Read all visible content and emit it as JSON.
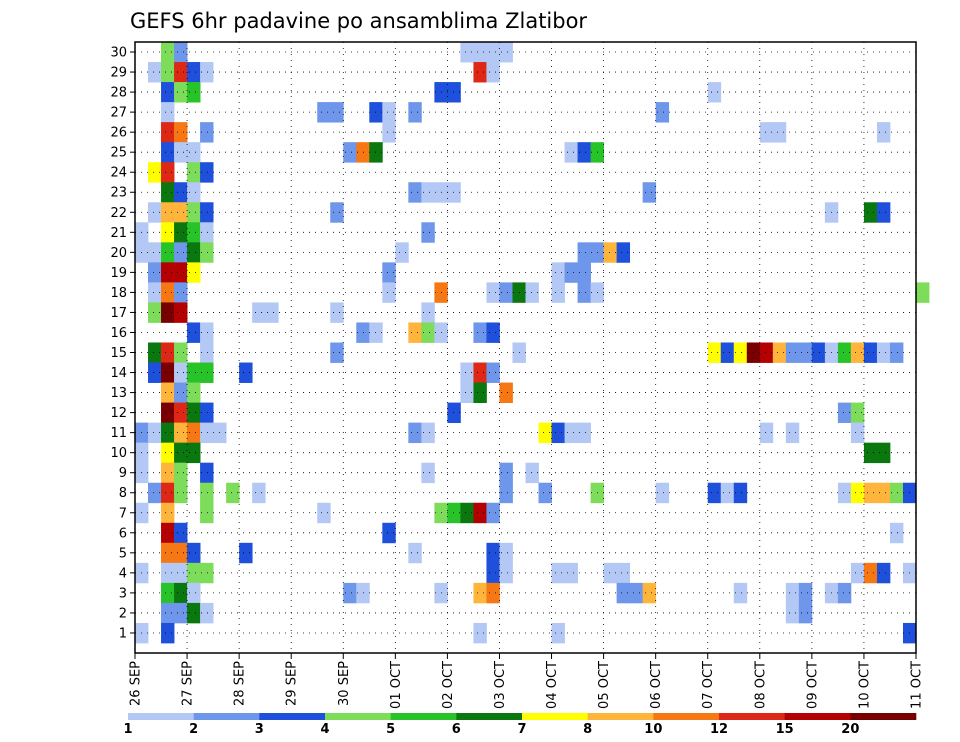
{
  "chart_data": {
    "type": "heatmap",
    "title": "GEFS 6hr padavine po ansamblima Zlatibor",
    "xlabel": "",
    "ylabel": "",
    "x_tick_labels": [
      "26 SEP",
      "27 SEP",
      "28 SEP",
      "29 SEP",
      "30 SEP",
      "01 OCT",
      "02 OCT",
      "03 OCT",
      "04 OCT",
      "05 OCT",
      "06 OCT",
      "07 OCT",
      "08 OCT",
      "09 OCT",
      "10 OCT",
      "11 OCT"
    ],
    "x_steps_per_day": 4,
    "x_range_steps": [
      0,
      60
    ],
    "y_tick_labels": [
      "1",
      "2",
      "3",
      "4",
      "5",
      "6",
      "7",
      "8",
      "9",
      "10",
      "11",
      "12",
      "13",
      "14",
      "15",
      "16",
      "17",
      "18",
      "19",
      "20",
      "21",
      "22",
      "23",
      "24",
      "25",
      "26",
      "27",
      "28",
      "29",
      "30"
    ],
    "grid": true,
    "colorbar": {
      "labels": [
        "1",
        "2",
        "3",
        "4",
        "5",
        "6",
        "7",
        "8",
        "10",
        "12",
        "15",
        "20"
      ],
      "colors": {
        "1": "#b4c8f5",
        "2": "#6e96eb",
        "3": "#1e50dc",
        "4": "#7ddc5a",
        "5": "#28c328",
        "6": "#0a780f",
        "7": "#ffff00",
        "8": "#ffb43c",
        "10": "#f57814",
        "12": "#dc2814",
        "15": "#b40000",
        "20": "#780000"
      }
    },
    "cells": [
      {
        "m": 30,
        "t": 2,
        "c": "4"
      },
      {
        "m": 30,
        "t": 3,
        "c": "2"
      },
      {
        "m": 30,
        "t": 25,
        "c": "1"
      },
      {
        "m": 30,
        "t": 26,
        "c": "1"
      },
      {
        "m": 30,
        "t": 27,
        "c": "1"
      },
      {
        "m": 30,
        "t": 28,
        "c": "1"
      },
      {
        "m": 29,
        "t": 1,
        "c": "1"
      },
      {
        "m": 29,
        "t": 2,
        "c": "4"
      },
      {
        "m": 29,
        "t": 3,
        "c": "12"
      },
      {
        "m": 29,
        "t": 4,
        "c": "3"
      },
      {
        "m": 29,
        "t": 5,
        "c": "1"
      },
      {
        "m": 29,
        "t": 26,
        "c": "12"
      },
      {
        "m": 29,
        "t": 27,
        "c": "1"
      },
      {
        "m": 28,
        "t": 2,
        "c": "3"
      },
      {
        "m": 28,
        "t": 3,
        "c": "4"
      },
      {
        "m": 28,
        "t": 4,
        "c": "5"
      },
      {
        "m": 28,
        "t": 23,
        "c": "3"
      },
      {
        "m": 28,
        "t": 24,
        "c": "3"
      },
      {
        "m": 28,
        "t": 44,
        "c": "1"
      },
      {
        "m": 27,
        "t": 2,
        "c": "1"
      },
      {
        "m": 27,
        "t": 14,
        "c": "2"
      },
      {
        "m": 27,
        "t": 15,
        "c": "2"
      },
      {
        "m": 27,
        "t": 18,
        "c": "3"
      },
      {
        "m": 27,
        "t": 19,
        "c": "1"
      },
      {
        "m": 27,
        "t": 21,
        "c": "2"
      },
      {
        "m": 27,
        "t": 40,
        "c": "2"
      },
      {
        "m": 26,
        "t": 2,
        "c": "12"
      },
      {
        "m": 26,
        "t": 3,
        "c": "10"
      },
      {
        "m": 26,
        "t": 5,
        "c": "2"
      },
      {
        "m": 26,
        "t": 19,
        "c": "1"
      },
      {
        "m": 26,
        "t": 48,
        "c": "1"
      },
      {
        "m": 26,
        "t": 49,
        "c": "1"
      },
      {
        "m": 26,
        "t": 57,
        "c": "1"
      },
      {
        "m": 25,
        "t": 2,
        "c": "3"
      },
      {
        "m": 25,
        "t": 3,
        "c": "1"
      },
      {
        "m": 25,
        "t": 4,
        "c": "1"
      },
      {
        "m": 25,
        "t": 16,
        "c": "2"
      },
      {
        "m": 25,
        "t": 17,
        "c": "10"
      },
      {
        "m": 25,
        "t": 18,
        "c": "6"
      },
      {
        "m": 25,
        "t": 33,
        "c": "1"
      },
      {
        "m": 25,
        "t": 34,
        "c": "3"
      },
      {
        "m": 25,
        "t": 35,
        "c": "5"
      },
      {
        "m": 24,
        "t": 1,
        "c": "7"
      },
      {
        "m": 24,
        "t": 2,
        "c": "12"
      },
      {
        "m": 24,
        "t": 4,
        "c": "4"
      },
      {
        "m": 24,
        "t": 5,
        "c": "3"
      },
      {
        "m": 23,
        "t": 2,
        "c": "6"
      },
      {
        "m": 23,
        "t": 3,
        "c": "3"
      },
      {
        "m": 23,
        "t": 4,
        "c": "1"
      },
      {
        "m": 23,
        "t": 21,
        "c": "2"
      },
      {
        "m": 23,
        "t": 22,
        "c": "1"
      },
      {
        "m": 23,
        "t": 23,
        "c": "1"
      },
      {
        "m": 23,
        "t": 24,
        "c": "1"
      },
      {
        "m": 23,
        "t": 39,
        "c": "2"
      },
      {
        "m": 22,
        "t": 1,
        "c": "1"
      },
      {
        "m": 22,
        "t": 2,
        "c": "8"
      },
      {
        "m": 22,
        "t": 3,
        "c": "8"
      },
      {
        "m": 22,
        "t": 4,
        "c": "4"
      },
      {
        "m": 22,
        "t": 5,
        "c": "3"
      },
      {
        "m": 22,
        "t": 15,
        "c": "2"
      },
      {
        "m": 22,
        "t": 53,
        "c": "1"
      },
      {
        "m": 22,
        "t": 56,
        "c": "6"
      },
      {
        "m": 22,
        "t": 57,
        "c": "3"
      },
      {
        "m": 21,
        "t": 0,
        "c": "1"
      },
      {
        "m": 21,
        "t": 2,
        "c": "7"
      },
      {
        "m": 21,
        "t": 3,
        "c": "6"
      },
      {
        "m": 21,
        "t": 4,
        "c": "5"
      },
      {
        "m": 21,
        "t": 5,
        "c": "1"
      },
      {
        "m": 21,
        "t": 22,
        "c": "2"
      },
      {
        "m": 20,
        "t": 0,
        "c": "1"
      },
      {
        "m": 20,
        "t": 1,
        "c": "1"
      },
      {
        "m": 20,
        "t": 2,
        "c": "5"
      },
      {
        "m": 20,
        "t": 3,
        "c": "2"
      },
      {
        "m": 20,
        "t": 4,
        "c": "6"
      },
      {
        "m": 20,
        "t": 5,
        "c": "4"
      },
      {
        "m": 20,
        "t": 20,
        "c": "1"
      },
      {
        "m": 20,
        "t": 34,
        "c": "2"
      },
      {
        "m": 20,
        "t": 35,
        "c": "2"
      },
      {
        "m": 20,
        "t": 36,
        "c": "8"
      },
      {
        "m": 20,
        "t": 37,
        "c": "3"
      },
      {
        "m": 19,
        "t": 1,
        "c": "2"
      },
      {
        "m": 19,
        "t": 2,
        "c": "15"
      },
      {
        "m": 19,
        "t": 3,
        "c": "15"
      },
      {
        "m": 19,
        "t": 4,
        "c": "7"
      },
      {
        "m": 19,
        "t": 19,
        "c": "2"
      },
      {
        "m": 19,
        "t": 32,
        "c": "1"
      },
      {
        "m": 19,
        "t": 33,
        "c": "2"
      },
      {
        "m": 19,
        "t": 34,
        "c": "2"
      },
      {
        "m": 18,
        "t": 1,
        "c": "1"
      },
      {
        "m": 18,
        "t": 2,
        "c": "10"
      },
      {
        "m": 18,
        "t": 3,
        "c": "2"
      },
      {
        "m": 18,
        "t": 19,
        "c": "1"
      },
      {
        "m": 18,
        "t": 23,
        "c": "10"
      },
      {
        "m": 18,
        "t": 27,
        "c": "1"
      },
      {
        "m": 18,
        "t": 28,
        "c": "2"
      },
      {
        "m": 18,
        "t": 29,
        "c": "6"
      },
      {
        "m": 18,
        "t": 30,
        "c": "1"
      },
      {
        "m": 18,
        "t": 32,
        "c": "1"
      },
      {
        "m": 18,
        "t": 34,
        "c": "2"
      },
      {
        "m": 18,
        "t": 35,
        "c": "1"
      },
      {
        "m": 18,
        "t": 60,
        "c": "4"
      },
      {
        "m": 17,
        "t": 1,
        "c": "4"
      },
      {
        "m": 17,
        "t": 2,
        "c": "20"
      },
      {
        "m": 17,
        "t": 3,
        "c": "15"
      },
      {
        "m": 17,
        "t": 9,
        "c": "1"
      },
      {
        "m": 17,
        "t": 10,
        "c": "1"
      },
      {
        "m": 17,
        "t": 15,
        "c": "1"
      },
      {
        "m": 17,
        "t": 22,
        "c": "1"
      },
      {
        "m": 16,
        "t": 4,
        "c": "3"
      },
      {
        "m": 16,
        "t": 5,
        "c": "1"
      },
      {
        "m": 16,
        "t": 17,
        "c": "2"
      },
      {
        "m": 16,
        "t": 18,
        "c": "1"
      },
      {
        "m": 16,
        "t": 21,
        "c": "8"
      },
      {
        "m": 16,
        "t": 22,
        "c": "4"
      },
      {
        "m": 16,
        "t": 23,
        "c": "1"
      },
      {
        "m": 16,
        "t": 26,
        "c": "2"
      },
      {
        "m": 16,
        "t": 27,
        "c": "3"
      },
      {
        "m": 15,
        "t": 1,
        "c": "6"
      },
      {
        "m": 15,
        "t": 2,
        "c": "12"
      },
      {
        "m": 15,
        "t": 3,
        "c": "4"
      },
      {
        "m": 15,
        "t": 5,
        "c": "1"
      },
      {
        "m": 15,
        "t": 15,
        "c": "2"
      },
      {
        "m": 15,
        "t": 29,
        "c": "1"
      },
      {
        "m": 15,
        "t": 44,
        "c": "7"
      },
      {
        "m": 15,
        "t": 45,
        "c": "3"
      },
      {
        "m": 15,
        "t": 46,
        "c": "7"
      },
      {
        "m": 15,
        "t": 47,
        "c": "20"
      },
      {
        "m": 15,
        "t": 48,
        "c": "15"
      },
      {
        "m": 15,
        "t": 49,
        "c": "8"
      },
      {
        "m": 15,
        "t": 50,
        "c": "2"
      },
      {
        "m": 15,
        "t": 51,
        "c": "2"
      },
      {
        "m": 15,
        "t": 52,
        "c": "3"
      },
      {
        "m": 15,
        "t": 53,
        "c": "1"
      },
      {
        "m": 15,
        "t": 54,
        "c": "5"
      },
      {
        "m": 15,
        "t": 55,
        "c": "8"
      },
      {
        "m": 15,
        "t": 56,
        "c": "3"
      },
      {
        "m": 15,
        "t": 57,
        "c": "1"
      },
      {
        "m": 15,
        "t": 58,
        "c": "2"
      },
      {
        "m": 14,
        "t": 1,
        "c": "3"
      },
      {
        "m": 14,
        "t": 2,
        "c": "20"
      },
      {
        "m": 14,
        "t": 3,
        "c": "1"
      },
      {
        "m": 14,
        "t": 4,
        "c": "5"
      },
      {
        "m": 14,
        "t": 5,
        "c": "5"
      },
      {
        "m": 14,
        "t": 8,
        "c": "3"
      },
      {
        "m": 14,
        "t": 25,
        "c": "1"
      },
      {
        "m": 14,
        "t": 26,
        "c": "12"
      },
      {
        "m": 14,
        "t": 27,
        "c": "2"
      },
      {
        "m": 13,
        "t": 2,
        "c": "8"
      },
      {
        "m": 13,
        "t": 3,
        "c": "2"
      },
      {
        "m": 13,
        "t": 4,
        "c": "4"
      },
      {
        "m": 13,
        "t": 25,
        "c": "1"
      },
      {
        "m": 13,
        "t": 26,
        "c": "6"
      },
      {
        "m": 13,
        "t": 28,
        "c": "10"
      },
      {
        "m": 12,
        "t": 2,
        "c": "20"
      },
      {
        "m": 12,
        "t": 3,
        "c": "12"
      },
      {
        "m": 12,
        "t": 4,
        "c": "6"
      },
      {
        "m": 12,
        "t": 5,
        "c": "3"
      },
      {
        "m": 12,
        "t": 24,
        "c": "3"
      },
      {
        "m": 12,
        "t": 54,
        "c": "2"
      },
      {
        "m": 12,
        "t": 55,
        "c": "4"
      },
      {
        "m": 11,
        "t": 0,
        "c": "2"
      },
      {
        "m": 11,
        "t": 1,
        "c": "1"
      },
      {
        "m": 11,
        "t": 2,
        "c": "6"
      },
      {
        "m": 11,
        "t": 3,
        "c": "8"
      },
      {
        "m": 11,
        "t": 4,
        "c": "10"
      },
      {
        "m": 11,
        "t": 5,
        "c": "1"
      },
      {
        "m": 11,
        "t": 6,
        "c": "1"
      },
      {
        "m": 11,
        "t": 21,
        "c": "2"
      },
      {
        "m": 11,
        "t": 22,
        "c": "1"
      },
      {
        "m": 11,
        "t": 31,
        "c": "7"
      },
      {
        "m": 11,
        "t": 32,
        "c": "3"
      },
      {
        "m": 11,
        "t": 33,
        "c": "1"
      },
      {
        "m": 11,
        "t": 34,
        "c": "1"
      },
      {
        "m": 11,
        "t": 48,
        "c": "1"
      },
      {
        "m": 11,
        "t": 50,
        "c": "1"
      },
      {
        "m": 11,
        "t": 55,
        "c": "1"
      },
      {
        "m": 10,
        "t": 0,
        "c": "1"
      },
      {
        "m": 10,
        "t": 2,
        "c": "7"
      },
      {
        "m": 10,
        "t": 3,
        "c": "6"
      },
      {
        "m": 10,
        "t": 4,
        "c": "6"
      },
      {
        "m": 10,
        "t": 56,
        "c": "6"
      },
      {
        "m": 10,
        "t": 57,
        "c": "6"
      },
      {
        "m": 9,
        "t": 0,
        "c": "1"
      },
      {
        "m": 9,
        "t": 2,
        "c": "8"
      },
      {
        "m": 9,
        "t": 3,
        "c": "4"
      },
      {
        "m": 9,
        "t": 5,
        "c": "3"
      },
      {
        "m": 9,
        "t": 22,
        "c": "1"
      },
      {
        "m": 9,
        "t": 28,
        "c": "2"
      },
      {
        "m": 9,
        "t": 30,
        "c": "1"
      },
      {
        "m": 8,
        "t": 1,
        "c": "2"
      },
      {
        "m": 8,
        "t": 2,
        "c": "12"
      },
      {
        "m": 8,
        "t": 3,
        "c": "4"
      },
      {
        "m": 8,
        "t": 5,
        "c": "4"
      },
      {
        "m": 8,
        "t": 7,
        "c": "4"
      },
      {
        "m": 8,
        "t": 9,
        "c": "1"
      },
      {
        "m": 8,
        "t": 28,
        "c": "2"
      },
      {
        "m": 8,
        "t": 31,
        "c": "2"
      },
      {
        "m": 8,
        "t": 35,
        "c": "4"
      },
      {
        "m": 8,
        "t": 40,
        "c": "1"
      },
      {
        "m": 8,
        "t": 44,
        "c": "3"
      },
      {
        "m": 8,
        "t": 45,
        "c": "1"
      },
      {
        "m": 8,
        "t": 46,
        "c": "3"
      },
      {
        "m": 8,
        "t": 54,
        "c": "1"
      },
      {
        "m": 8,
        "t": 55,
        "c": "7"
      },
      {
        "m": 8,
        "t": 56,
        "c": "8"
      },
      {
        "m": 8,
        "t": 57,
        "c": "8"
      },
      {
        "m": 8,
        "t": 58,
        "c": "4"
      },
      {
        "m": 8,
        "t": 59,
        "c": "3"
      },
      {
        "m": 7,
        "t": 0,
        "c": "1"
      },
      {
        "m": 7,
        "t": 2,
        "c": "8"
      },
      {
        "m": 7,
        "t": 5,
        "c": "4"
      },
      {
        "m": 7,
        "t": 14,
        "c": "1"
      },
      {
        "m": 7,
        "t": 23,
        "c": "4"
      },
      {
        "m": 7,
        "t": 24,
        "c": "5"
      },
      {
        "m": 7,
        "t": 25,
        "c": "6"
      },
      {
        "m": 7,
        "t": 26,
        "c": "15"
      },
      {
        "m": 7,
        "t": 27,
        "c": "2"
      },
      {
        "m": 6,
        "t": 2,
        "c": "15"
      },
      {
        "m": 6,
        "t": 3,
        "c": "3"
      },
      {
        "m": 6,
        "t": 19,
        "c": "3"
      },
      {
        "m": 6,
        "t": 58,
        "c": "1"
      },
      {
        "m": 5,
        "t": 2,
        "c": "10"
      },
      {
        "m": 5,
        "t": 3,
        "c": "10"
      },
      {
        "m": 5,
        "t": 4,
        "c": "3"
      },
      {
        "m": 5,
        "t": 8,
        "c": "3"
      },
      {
        "m": 5,
        "t": 21,
        "c": "1"
      },
      {
        "m": 5,
        "t": 27,
        "c": "3"
      },
      {
        "m": 5,
        "t": 28,
        "c": "1"
      },
      {
        "m": 4,
        "t": 0,
        "c": "1"
      },
      {
        "m": 4,
        "t": 2,
        "c": "1"
      },
      {
        "m": 4,
        "t": 3,
        "c": "1"
      },
      {
        "m": 4,
        "t": 4,
        "c": "4"
      },
      {
        "m": 4,
        "t": 5,
        "c": "4"
      },
      {
        "m": 4,
        "t": 27,
        "c": "3"
      },
      {
        "m": 4,
        "t": 28,
        "c": "1"
      },
      {
        "m": 4,
        "t": 32,
        "c": "1"
      },
      {
        "m": 4,
        "t": 33,
        "c": "1"
      },
      {
        "m": 4,
        "t": 36,
        "c": "1"
      },
      {
        "m": 4,
        "t": 37,
        "c": "1"
      },
      {
        "m": 4,
        "t": 55,
        "c": "1"
      },
      {
        "m": 4,
        "t": 56,
        "c": "10"
      },
      {
        "m": 4,
        "t": 57,
        "c": "3"
      },
      {
        "m": 4,
        "t": 59,
        "c": "1"
      },
      {
        "m": 3,
        "t": 2,
        "c": "5"
      },
      {
        "m": 3,
        "t": 3,
        "c": "6"
      },
      {
        "m": 3,
        "t": 4,
        "c": "1"
      },
      {
        "m": 3,
        "t": 16,
        "c": "2"
      },
      {
        "m": 3,
        "t": 17,
        "c": "1"
      },
      {
        "m": 3,
        "t": 23,
        "c": "1"
      },
      {
        "m": 3,
        "t": 26,
        "c": "8"
      },
      {
        "m": 3,
        "t": 27,
        "c": "10"
      },
      {
        "m": 3,
        "t": 37,
        "c": "2"
      },
      {
        "m": 3,
        "t": 38,
        "c": "2"
      },
      {
        "m": 3,
        "t": 39,
        "c": "8"
      },
      {
        "m": 3,
        "t": 46,
        "c": "1"
      },
      {
        "m": 3,
        "t": 50,
        "c": "1"
      },
      {
        "m": 3,
        "t": 51,
        "c": "2"
      },
      {
        "m": 3,
        "t": 53,
        "c": "1"
      },
      {
        "m": 3,
        "t": 54,
        "c": "2"
      },
      {
        "m": 2,
        "t": 2,
        "c": "2"
      },
      {
        "m": 2,
        "t": 3,
        "c": "2"
      },
      {
        "m": 2,
        "t": 4,
        "c": "6"
      },
      {
        "m": 2,
        "t": 5,
        "c": "1"
      },
      {
        "m": 2,
        "t": 50,
        "c": "1"
      },
      {
        "m": 2,
        "t": 51,
        "c": "2"
      },
      {
        "m": 1,
        "t": 0,
        "c": "1"
      },
      {
        "m": 1,
        "t": 2,
        "c": "3"
      },
      {
        "m": 1,
        "t": 26,
        "c": "1"
      },
      {
        "m": 1,
        "t": 32,
        "c": "1"
      },
      {
        "m": 1,
        "t": 59,
        "c": "3"
      }
    ]
  }
}
